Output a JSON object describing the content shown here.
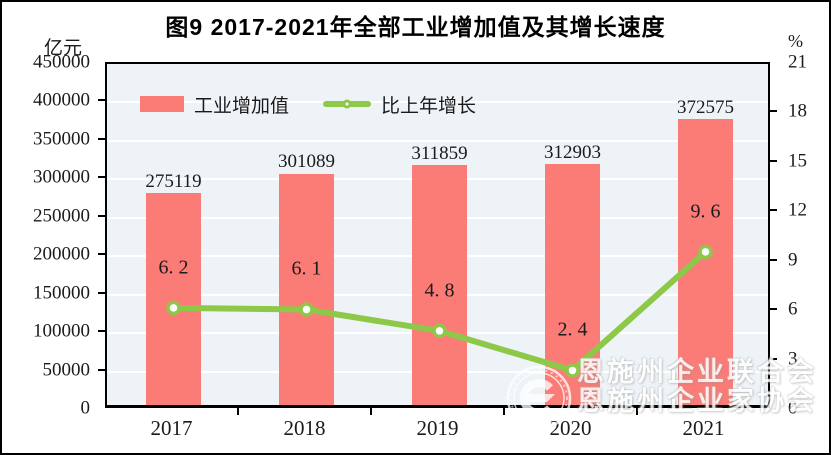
{
  "chart_data": {
    "type": "bar+line combo",
    "title": "图9  2017-2021年全部工业增加值及其增长速度",
    "categories": [
      "2017",
      "2018",
      "2019",
      "2020",
      "2021"
    ],
    "series": [
      {
        "name": "工业增加值",
        "type": "bar",
        "axis": "left",
        "values": [
          275119,
          301089,
          311859,
          312903,
          372575
        ],
        "labels": [
          "275119",
          "301089",
          "311859",
          "312903",
          "372575"
        ],
        "color": "#FB7B76"
      },
      {
        "name": "比上年增长",
        "type": "line",
        "axis": "right",
        "values": [
          6.2,
          6.1,
          4.8,
          2.4,
          9.6
        ],
        "labels": [
          "6. 2",
          "6. 1",
          "4. 8",
          "2. 4",
          "9. 6"
        ],
        "color": "#8DC849",
        "marker": "circle-white-fill"
      }
    ],
    "left_axis": {
      "label": "亿元",
      "min": 0,
      "max": 450000,
      "tick_step": 50000,
      "ticks": [
        "0",
        "50000",
        "100000",
        "150000",
        "200000",
        "250000",
        "300000",
        "350000",
        "400000",
        "450000"
      ]
    },
    "right_axis": {
      "label": "%",
      "min": 0,
      "max": 21,
      "tick_step": 3,
      "ticks": [
        "0",
        "3",
        "6",
        "9",
        "12",
        "15",
        "18",
        "21"
      ]
    },
    "legend_position": "top-left-inside",
    "grid": true,
    "plot_bg": "#EDF3F7",
    "gridline_color": "#FFFFFF",
    "axis_color": "#000000"
  },
  "watermark": {
    "line1": "恩施州企业联合会",
    "line2": "恩施州企业家协会"
  }
}
